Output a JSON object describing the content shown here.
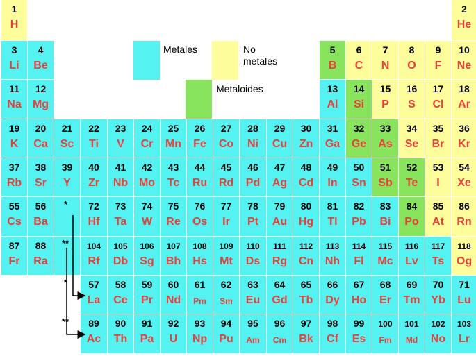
{
  "colors": {
    "metal": "#55f2f2",
    "nonmetal": "#fdfd9c",
    "metalloid": "#88e45c",
    "symbol": "#e8403a"
  },
  "legend": {
    "metales": "Metales",
    "no_metales": "No metales",
    "metaloides": "Metaloides"
  },
  "markers": {
    "lanthanide": "*",
    "actinide": "**"
  },
  "elements": [
    {
      "n": "1",
      "s": "H",
      "c": "nonmetal"
    },
    {
      "n": "2",
      "s": "He",
      "c": "nonmetal"
    },
    {
      "n": "3",
      "s": "Li",
      "c": "metal"
    },
    {
      "n": "4",
      "s": "Be",
      "c": "metal"
    },
    {
      "n": "5",
      "s": "B",
      "c": "metalloid"
    },
    {
      "n": "6",
      "s": "C",
      "c": "nonmetal"
    },
    {
      "n": "7",
      "s": "N",
      "c": "nonmetal"
    },
    {
      "n": "8",
      "s": "O",
      "c": "nonmetal"
    },
    {
      "n": "9",
      "s": "F",
      "c": "nonmetal"
    },
    {
      "n": "10",
      "s": "Ne",
      "c": "nonmetal"
    },
    {
      "n": "11",
      "s": "Na",
      "c": "metal"
    },
    {
      "n": "12",
      "s": "Mg",
      "c": "metal"
    },
    {
      "n": "13",
      "s": "Al",
      "c": "metal"
    },
    {
      "n": "14",
      "s": "Si",
      "c": "metalloid"
    },
    {
      "n": "15",
      "s": "P",
      "c": "nonmetal"
    },
    {
      "n": "16",
      "s": "S",
      "c": "nonmetal"
    },
    {
      "n": "17",
      "s": "Cl",
      "c": "nonmetal"
    },
    {
      "n": "18",
      "s": "Ar",
      "c": "nonmetal"
    },
    {
      "n": "19",
      "s": "K",
      "c": "metal"
    },
    {
      "n": "20",
      "s": "Ca",
      "c": "metal"
    },
    {
      "n": "21",
      "s": "Sc",
      "c": "metal"
    },
    {
      "n": "22",
      "s": "Ti",
      "c": "metal"
    },
    {
      "n": "23",
      "s": "V",
      "c": "metal"
    },
    {
      "n": "24",
      "s": "Cr",
      "c": "metal"
    },
    {
      "n": "25",
      "s": "Mn",
      "c": "metal"
    },
    {
      "n": "26",
      "s": "Fe",
      "c": "metal"
    },
    {
      "n": "27",
      "s": "Co",
      "c": "metal"
    },
    {
      "n": "28",
      "s": "Ni",
      "c": "metal"
    },
    {
      "n": "29",
      "s": "Cu",
      "c": "metal"
    },
    {
      "n": "30",
      "s": "Zn",
      "c": "metal"
    },
    {
      "n": "31",
      "s": "Ga",
      "c": "metal"
    },
    {
      "n": "32",
      "s": "Ge",
      "c": "metalloid"
    },
    {
      "n": "33",
      "s": "As",
      "c": "metalloid"
    },
    {
      "n": "34",
      "s": "Se",
      "c": "nonmetal"
    },
    {
      "n": "35",
      "s": "Br",
      "c": "nonmetal"
    },
    {
      "n": "36",
      "s": "Kr",
      "c": "nonmetal"
    },
    {
      "n": "37",
      "s": "Rb",
      "c": "metal"
    },
    {
      "n": "38",
      "s": "Sr",
      "c": "metal"
    },
    {
      "n": "39",
      "s": "Y",
      "c": "metal"
    },
    {
      "n": "40",
      "s": "Zr",
      "c": "metal"
    },
    {
      "n": "41",
      "s": "Nb",
      "c": "metal"
    },
    {
      "n": "42",
      "s": "Mo",
      "c": "metal"
    },
    {
      "n": "43",
      "s": "Tc",
      "c": "metal"
    },
    {
      "n": "44",
      "s": "Ru",
      "c": "metal"
    },
    {
      "n": "45",
      "s": "Rd",
      "c": "metal"
    },
    {
      "n": "46",
      "s": "Pd",
      "c": "metal"
    },
    {
      "n": "47",
      "s": "Ag",
      "c": "metal"
    },
    {
      "n": "48",
      "s": "Cd",
      "c": "metal"
    },
    {
      "n": "49",
      "s": "In",
      "c": "metal"
    },
    {
      "n": "50",
      "s": "Sn",
      "c": "metal"
    },
    {
      "n": "51",
      "s": "Sb",
      "c": "metalloid"
    },
    {
      "n": "52",
      "s": "Te",
      "c": "metalloid"
    },
    {
      "n": "53",
      "s": "I",
      "c": "nonmetal"
    },
    {
      "n": "54",
      "s": "Xe",
      "c": "nonmetal"
    },
    {
      "n": "55",
      "s": "Cs",
      "c": "metal"
    },
    {
      "n": "56",
      "s": "Ba",
      "c": "metal"
    },
    {
      "n": "72",
      "s": "Hf",
      "c": "metal"
    },
    {
      "n": "73",
      "s": "Ta",
      "c": "metal"
    },
    {
      "n": "74",
      "s": "W",
      "c": "metal"
    },
    {
      "n": "75",
      "s": "Re",
      "c": "metal"
    },
    {
      "n": "76",
      "s": "Os",
      "c": "metal"
    },
    {
      "n": "77",
      "s": "Ir",
      "c": "metal"
    },
    {
      "n": "78",
      "s": "Pt",
      "c": "metal"
    },
    {
      "n": "79",
      "s": "Au",
      "c": "metal"
    },
    {
      "n": "80",
      "s": "Hg",
      "c": "metal"
    },
    {
      "n": "81",
      "s": "Tl",
      "c": "metal"
    },
    {
      "n": "82",
      "s": "Pb",
      "c": "metal"
    },
    {
      "n": "83",
      "s": "Bi",
      "c": "metal"
    },
    {
      "n": "84",
      "s": "Po",
      "c": "metalloid"
    },
    {
      "n": "85",
      "s": "At",
      "c": "nonmetal"
    },
    {
      "n": "86",
      "s": "Rn",
      "c": "nonmetal"
    },
    {
      "n": "87",
      "s": "Fr",
      "c": "metal"
    },
    {
      "n": "88",
      "s": "Ra",
      "c": "metal"
    },
    {
      "n": "104",
      "s": "Rf",
      "c": "metal"
    },
    {
      "n": "105",
      "s": "Db",
      "c": "metal"
    },
    {
      "n": "106",
      "s": "Sg",
      "c": "metal"
    },
    {
      "n": "107",
      "s": "Bh",
      "c": "metal"
    },
    {
      "n": "108",
      "s": "Hs",
      "c": "metal"
    },
    {
      "n": "109",
      "s": "Mt",
      "c": "metal"
    },
    {
      "n": "110",
      "s": "Ds",
      "c": "metal"
    },
    {
      "n": "111",
      "s": "Rg",
      "c": "metal"
    },
    {
      "n": "112",
      "s": "Cn",
      "c": "metal"
    },
    {
      "n": "113",
      "s": "Nh",
      "c": "metal"
    },
    {
      "n": "114",
      "s": "Fl",
      "c": "metal"
    },
    {
      "n": "115",
      "s": "Mc",
      "c": "metal"
    },
    {
      "n": "116",
      "s": "Lv",
      "c": "metal"
    },
    {
      "n": "117",
      "s": "Ts",
      "c": "metal"
    },
    {
      "n": "118",
      "s": "Og",
      "c": "nonmetal"
    },
    {
      "n": "57",
      "s": "La",
      "c": "metal"
    },
    {
      "n": "58",
      "s": "Ce",
      "c": "metal"
    },
    {
      "n": "59",
      "s": "Pr",
      "c": "metal"
    },
    {
      "n": "60",
      "s": "Nd",
      "c": "metal"
    },
    {
      "n": "61",
      "s": "Pm",
      "c": "metal"
    },
    {
      "n": "62",
      "s": "Sm",
      "c": "metal"
    },
    {
      "n": "63",
      "s": "Eu",
      "c": "metal"
    },
    {
      "n": "64",
      "s": "Gd",
      "c": "metal"
    },
    {
      "n": "65",
      "s": "Tb",
      "c": "metal"
    },
    {
      "n": "66",
      "s": "Dy",
      "c": "metal"
    },
    {
      "n": "67",
      "s": "Ho",
      "c": "metal"
    },
    {
      "n": "68",
      "s": "Er",
      "c": "metal"
    },
    {
      "n": "69",
      "s": "Tm",
      "c": "metal"
    },
    {
      "n": "70",
      "s": "Yb",
      "c": "metal"
    },
    {
      "n": "71",
      "s": "Lu",
      "c": "metal"
    },
    {
      "n": "89",
      "s": "Ac",
      "c": "metal"
    },
    {
      "n": "90",
      "s": "Th",
      "c": "metal"
    },
    {
      "n": "91",
      "s": "Pa",
      "c": "metal"
    },
    {
      "n": "92",
      "s": "U",
      "c": "metal"
    },
    {
      "n": "93",
      "s": "Np",
      "c": "metal"
    },
    {
      "n": "94",
      "s": "Pu",
      "c": "metal"
    },
    {
      "n": "95",
      "s": "Am",
      "c": "metal"
    },
    {
      "n": "96",
      "s": "Cm",
      "c": "metal"
    },
    {
      "n": "97",
      "s": "Bk",
      "c": "metal"
    },
    {
      "n": "98",
      "s": "Cf",
      "c": "metal"
    },
    {
      "n": "99",
      "s": "Es",
      "c": "metal"
    },
    {
      "n": "100",
      "s": "Fm",
      "c": "metal"
    },
    {
      "n": "101",
      "s": "Md",
      "c": "metal"
    },
    {
      "n": "102",
      "s": "No",
      "c": "metal"
    },
    {
      "n": "103",
      "s": "Lr",
      "c": "metal"
    }
  ]
}
